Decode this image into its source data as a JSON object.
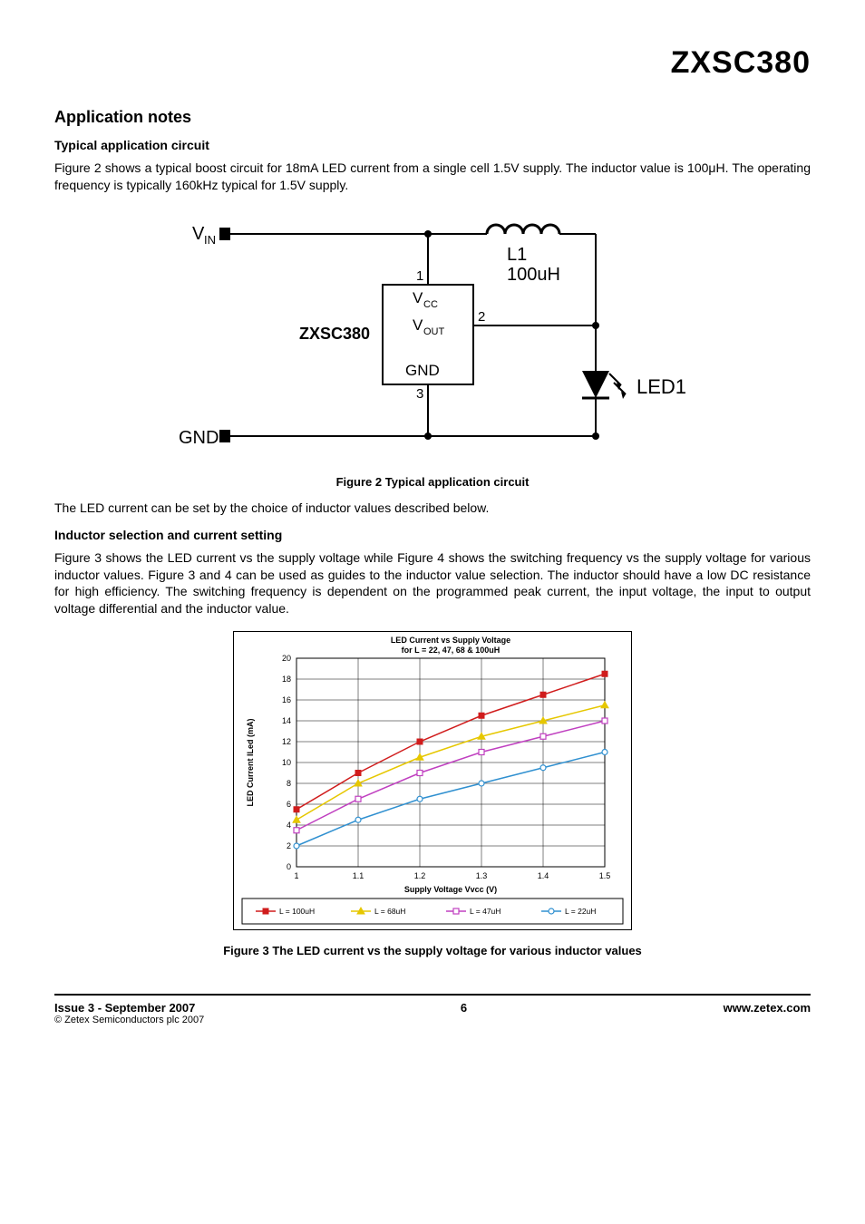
{
  "header": {
    "product": "ZXSC380"
  },
  "appnotes": {
    "heading": "Application notes",
    "typical": {
      "subheading": "Typical application circuit",
      "para": "Figure 2 shows a typical boost circuit for 18mA LED current from a single cell 1.5V supply. The inductor value is 100μH. The operating frequency is typically 160kHz typical for 1.5V supply."
    },
    "fig2_caption": "Figure 2 Typical application circuit",
    "led_set_para": "The LED current can be set by the choice of inductor values described below.",
    "inductor": {
      "subheading": "Inductor selection and current setting",
      "para": "Figure 3 shows the LED current vs the supply voltage while Figure 4 shows the switching frequency vs the supply voltage for various inductor values. Figure 3 and 4 can be used as guides to the inductor value selection. The inductor should have a low DC resistance for high efficiency. The switching frequency is dependent on the programmed peak current, the input voltage, the input to output voltage differential and the inductor value."
    },
    "fig3_caption": "Figure 3 The LED current vs the supply voltage for various inductor values"
  },
  "circuit": {
    "vin_label": "V",
    "vin_sub": "IN",
    "gnd_label": "GND",
    "chip_label": "ZXSC380",
    "pin1_num": "1",
    "pin1_name": "V",
    "pin1_sub": "CC",
    "pin2_num": "2",
    "pin2_name": "V",
    "pin2_sub": "OUT",
    "pin3_num": "3",
    "pin3_name": "GND",
    "inductor_ref": "L1",
    "inductor_val": "100uH",
    "led_label": "LED1"
  },
  "chart": {
    "title_line1": "LED Current vs Supply Voltage",
    "title_line2": "for L = 22, 47, 68 & 100uH",
    "xlabel": "Supply Voltage Vvcc (V)",
    "ylabel": "LED Current ILed (mA)",
    "xlim": [
      1,
      1.5
    ],
    "ylim": [
      0,
      20
    ],
    "xticks": [
      "1",
      "1.1",
      "1.2",
      "1.3",
      "1.4",
      "1.5"
    ],
    "yticks": [
      "0",
      "2",
      "4",
      "6",
      "8",
      "10",
      "12",
      "14",
      "16",
      "18",
      "20"
    ],
    "plot_bg": "#ffffff",
    "grid_color": "#000000",
    "series": [
      {
        "name": "L = 100uH",
        "color": "#d01c1c",
        "marker": "square",
        "x": [
          1.0,
          1.1,
          1.2,
          1.3,
          1.4,
          1.5
        ],
        "y": [
          5.5,
          9.0,
          12.0,
          14.5,
          16.5,
          18.5
        ]
      },
      {
        "name": "L = 68uH",
        "color": "#e6c700",
        "marker": "triangle",
        "x": [
          1.0,
          1.1,
          1.2,
          1.3,
          1.4,
          1.5
        ],
        "y": [
          4.5,
          8.0,
          10.5,
          12.5,
          14.0,
          15.5
        ]
      },
      {
        "name": "L = 47uH",
        "color": "#c040c0",
        "marker": "square-open",
        "x": [
          1.0,
          1.1,
          1.2,
          1.3,
          1.4,
          1.5
        ],
        "y": [
          3.5,
          6.5,
          9.0,
          11.0,
          12.5,
          14.0
        ]
      },
      {
        "name": "L = 22uH",
        "color": "#3090d0",
        "marker": "circle-open",
        "x": [
          1.0,
          1.1,
          1.2,
          1.3,
          1.4,
          1.5
        ],
        "y": [
          2.0,
          4.5,
          6.5,
          8.0,
          9.5,
          11.0
        ]
      }
    ],
    "legend": [
      "L = 100uH",
      "L = 68uH",
      "L = 47uH",
      "L = 22uH"
    ]
  },
  "footer": {
    "issue": "Issue 3 - September 2007",
    "copyright": "© Zetex Semiconductors plc 2007",
    "page": "6",
    "url": "www.zetex.com"
  }
}
